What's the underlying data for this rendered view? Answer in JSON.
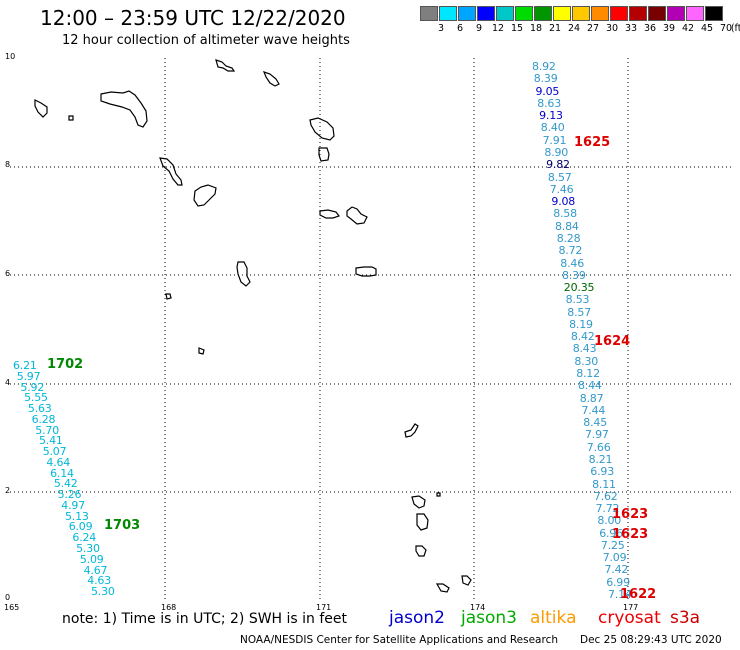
{
  "header": {
    "title": "12:00 – 23:59 UTC 12/22/2020",
    "subtitle": "12 hour collection of altimeter wave heights"
  },
  "scale": {
    "unit": "(ft)",
    "colors": [
      "#7f7f7f",
      "#00e6ff",
      "#00a5ff",
      "#0000ff",
      "#00c8c8",
      "#00dc00",
      "#009600",
      "#ffff00",
      "#ffc800",
      "#ff8c00",
      "#ff0000",
      "#b40000",
      "#780000",
      "#b400b4",
      "#ff66ff",
      "#000000"
    ],
    "labels": [
      "3",
      "6",
      "9",
      "12",
      "15",
      "18",
      "21",
      "24",
      "27",
      "30",
      "33",
      "36",
      "39",
      "42",
      "45",
      "70"
    ]
  },
  "axes": {
    "x_ticks": [
      "165",
      "168",
      "171",
      "174",
      "177"
    ],
    "y_ticks": [
      "10",
      "8",
      "6",
      "4",
      "2",
      "0"
    ]
  },
  "tracks": {
    "east": {
      "values": [
        "8.92",
        "8.39",
        "9.05",
        "8.63",
        "9.13",
        "8.40",
        "7.91",
        "8.90",
        "9.82",
        "8.57",
        "7.46",
        "9.08",
        "8.58",
        "8.84",
        "8.28",
        "8.72",
        "8.46",
        "8.39",
        "20.35",
        "8.53",
        "8.57",
        "8.19",
        "8.42",
        "8.43",
        "8.30",
        "8.12",
        "8.44",
        "8.87",
        "7.44",
        "8.45",
        "7.97",
        "7.66",
        "8.21",
        "6.93",
        "8.11",
        "7.62",
        "7.72",
        "8.00",
        "6.96",
        "7.25",
        "7.09",
        "7.42",
        "6.99",
        "7.14"
      ],
      "colors": [
        "#3399cc",
        "#3399cc",
        "#0000cc",
        "#3399cc",
        "#0000cc",
        "#3399cc",
        "#3399cc",
        "#3399cc",
        "#000066",
        "#3399cc",
        "#3399cc",
        "#0000cc",
        "#3399cc",
        "#3399cc",
        "#3399cc",
        "#3399cc",
        "#3399cc",
        "#3399cc",
        "#006600",
        "#3399cc",
        "#3399cc",
        "#3399cc",
        "#3399cc",
        "#3399cc",
        "#3399cc",
        "#3399cc",
        "#3399cc",
        "#3399cc",
        "#3399cc",
        "#3399cc",
        "#3399cc",
        "#3399cc",
        "#3399cc",
        "#3399cc",
        "#3399cc",
        "#3399cc",
        "#3399cc",
        "#3399cc",
        "#3399cc",
        "#3399cc",
        "#3399cc",
        "#3399cc",
        "#3399cc",
        "#3399cc"
      ]
    },
    "west": {
      "values": [
        "6.21",
        "5.97",
        "5.92",
        "5.55",
        "5.63",
        "6.28",
        "5.70",
        "5.41",
        "5.07",
        "4.64",
        "6.14",
        "5.42",
        "5.26",
        "4.97",
        "5.13",
        "6.09",
        "6.24",
        "5.30",
        "5.09",
        "4.67",
        "4.63",
        "5.30"
      ],
      "color": "#00b8d8"
    }
  },
  "pass_labels": [
    {
      "text": "1625",
      "color": "#dd0000"
    },
    {
      "text": "1624",
      "color": "#dd0000"
    },
    {
      "text": "1623",
      "color": "#dd0000"
    },
    {
      "text": "1623",
      "color": "#dd0000"
    },
    {
      "text": "1622",
      "color": "#dd0000"
    },
    {
      "text": "1702",
      "color": "#008800"
    },
    {
      "text": "1703",
      "color": "#008800"
    }
  ],
  "footer": {
    "note": "note:  1) Time is in UTC;  2) SWH is in feet",
    "satellites": [
      {
        "name": "jason2",
        "color": "#0000cc"
      },
      {
        "name": "jason3",
        "color": "#00aa00"
      },
      {
        "name": "altika",
        "color": "#ff9900"
      },
      {
        "name": "cryosat",
        "color": "#ee0000"
      },
      {
        "name": "s3a",
        "color": "#cc0000"
      }
    ],
    "credit": "NOAA/NESDIS Center for Satellite Applications and Research",
    "timestamp": "Dec 25 08:29:43 UTC 2020"
  }
}
